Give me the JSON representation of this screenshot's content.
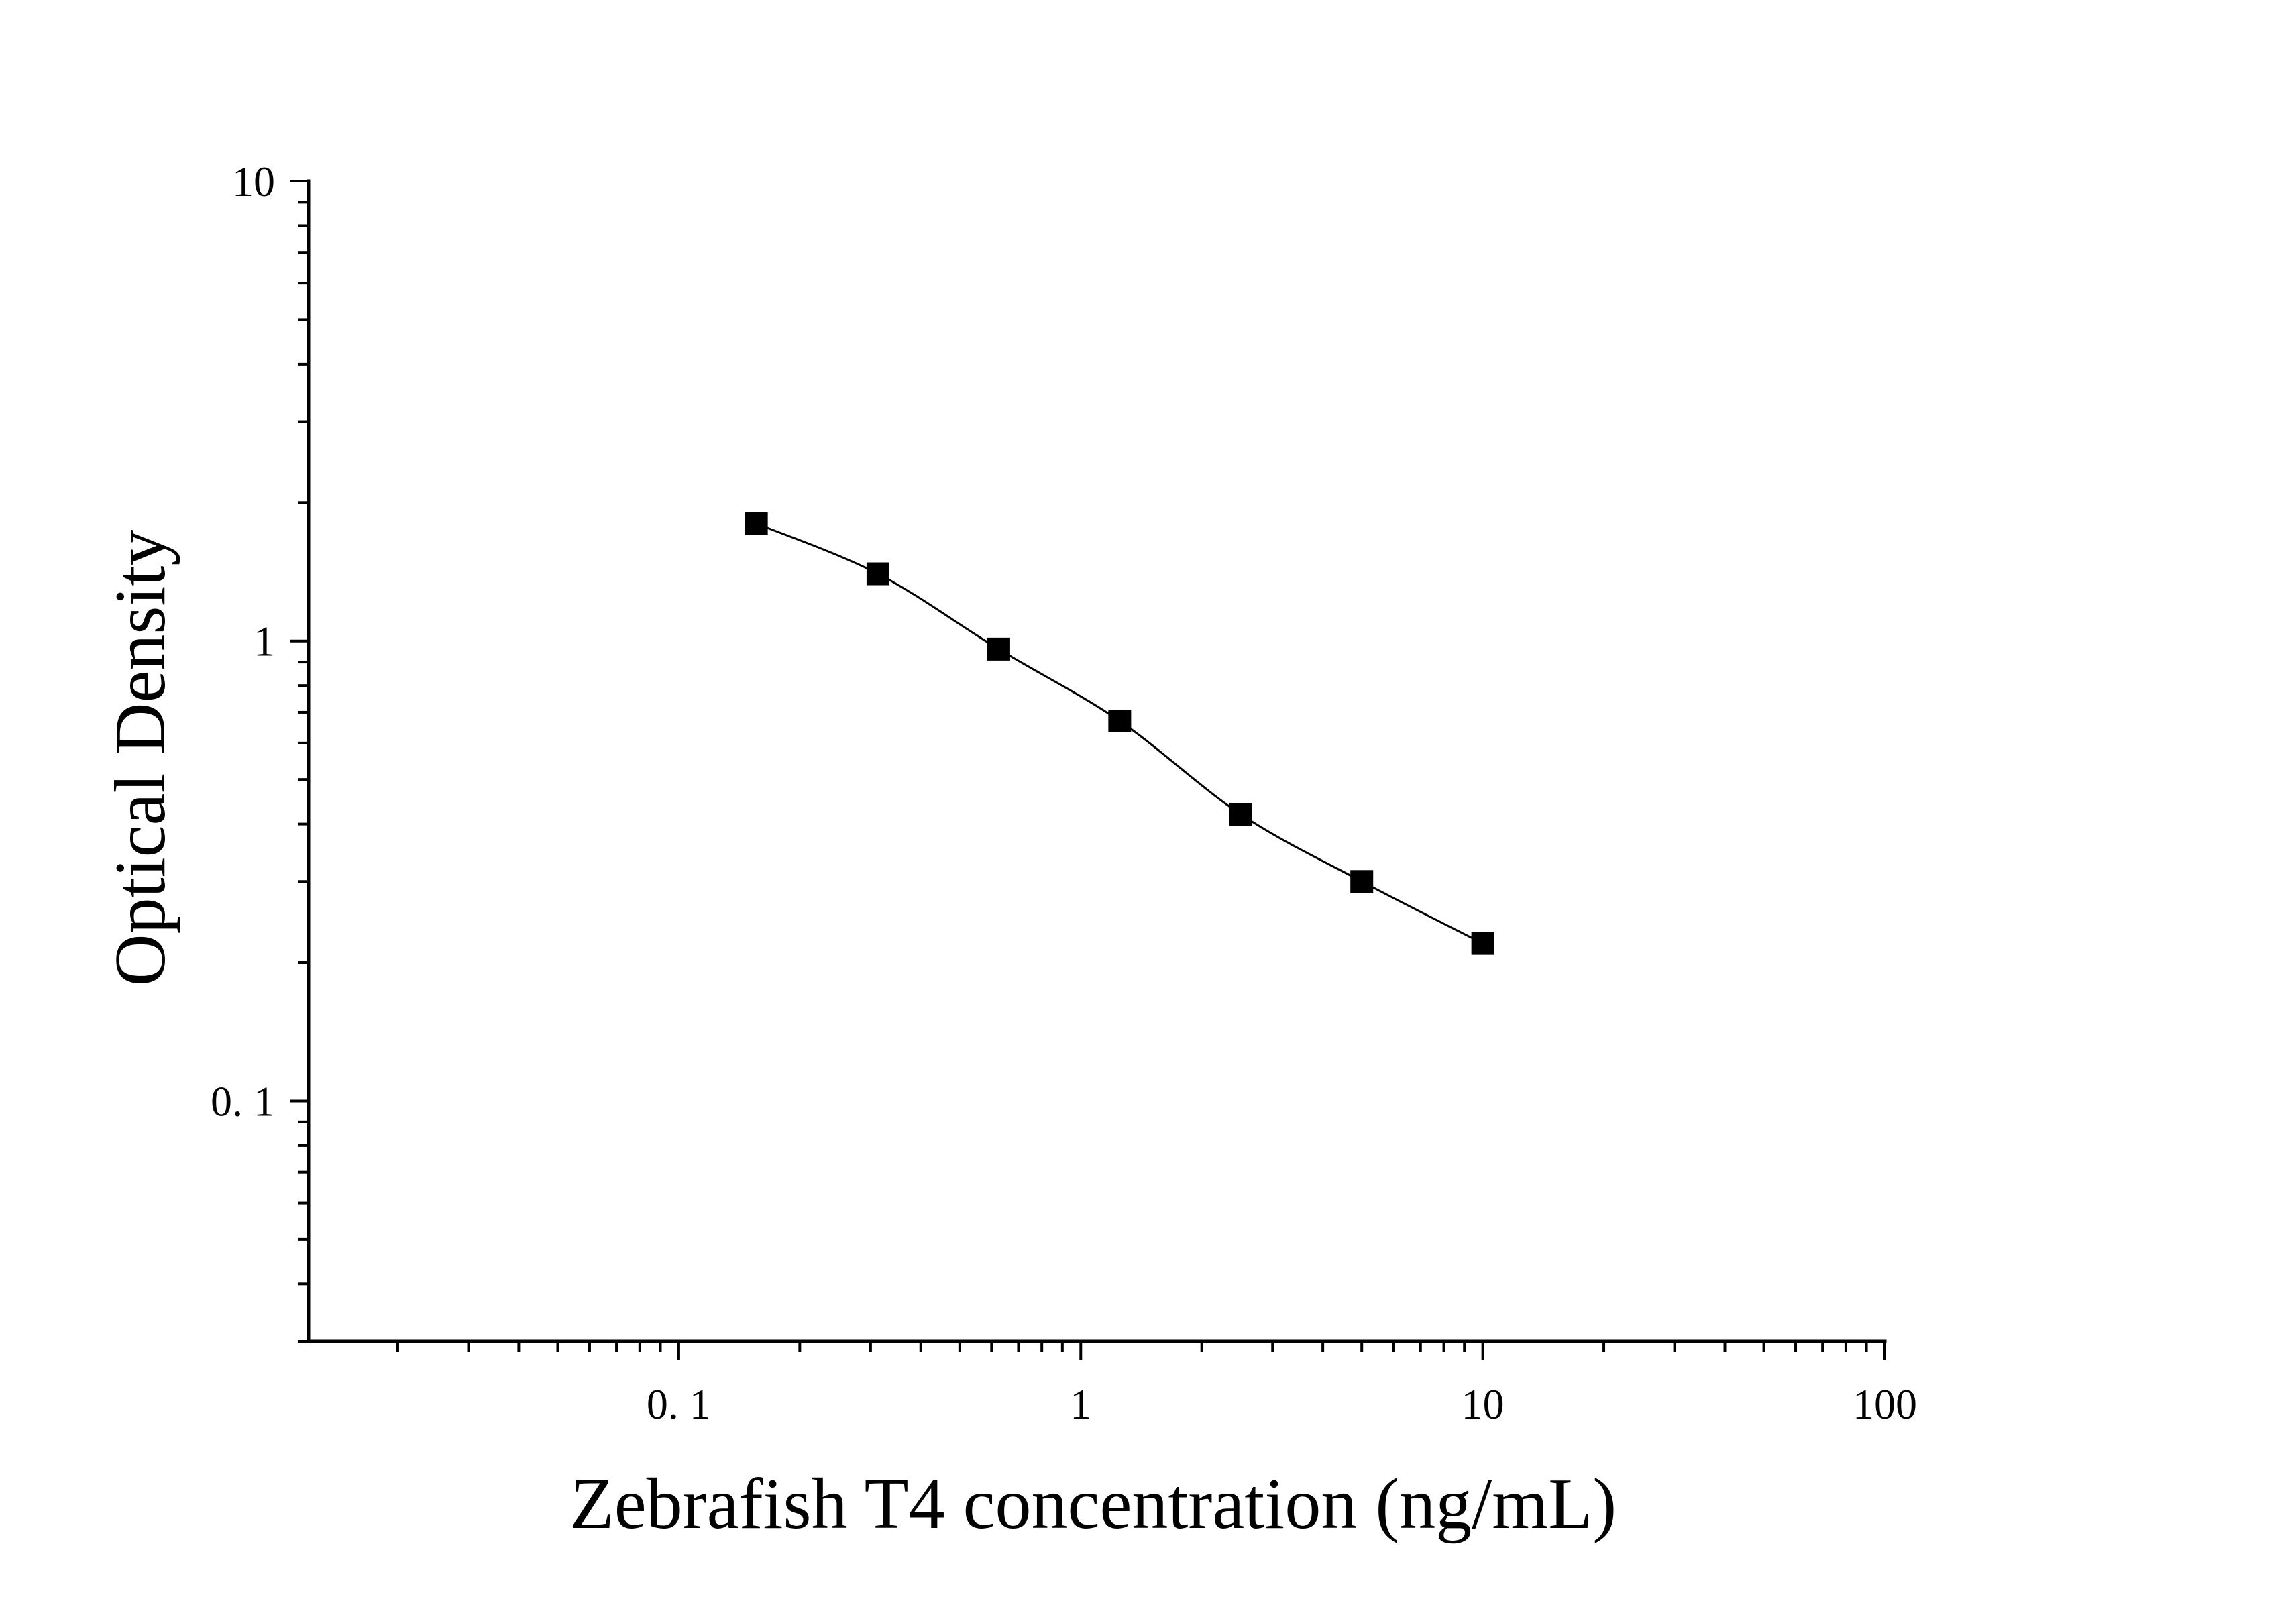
{
  "chart_data": {
    "type": "scatter",
    "title": "",
    "xlabel": "Zebrafish T4 concentration (ng/mL)",
    "ylabel": "Optical Density",
    "x_scale": "log",
    "y_scale": "log",
    "xlim": [
      0.012,
      100
    ],
    "ylim": [
      0.03,
      10
    ],
    "x_ticks": [
      {
        "value": 0.1,
        "label": "0. 1"
      },
      {
        "value": 1,
        "label": "1"
      },
      {
        "value": 10,
        "label": "10"
      },
      {
        "value": 100,
        "label": "100"
      }
    ],
    "y_ticks": [
      {
        "value": 0.1,
        "label": "0. 1"
      },
      {
        "value": 1,
        "label": "1"
      },
      {
        "value": 10,
        "label": "10"
      }
    ],
    "grid": false,
    "legend": "none",
    "marker": "square",
    "color": "#000000",
    "series": [
      {
        "x": [
          0.156,
          0.313,
          0.625,
          1.25,
          2.5,
          5,
          10
        ],
        "y": [
          1.8,
          1.4,
          0.96,
          0.67,
          0.42,
          0.3,
          0.22
        ]
      }
    ],
    "fit_curve": true
  }
}
